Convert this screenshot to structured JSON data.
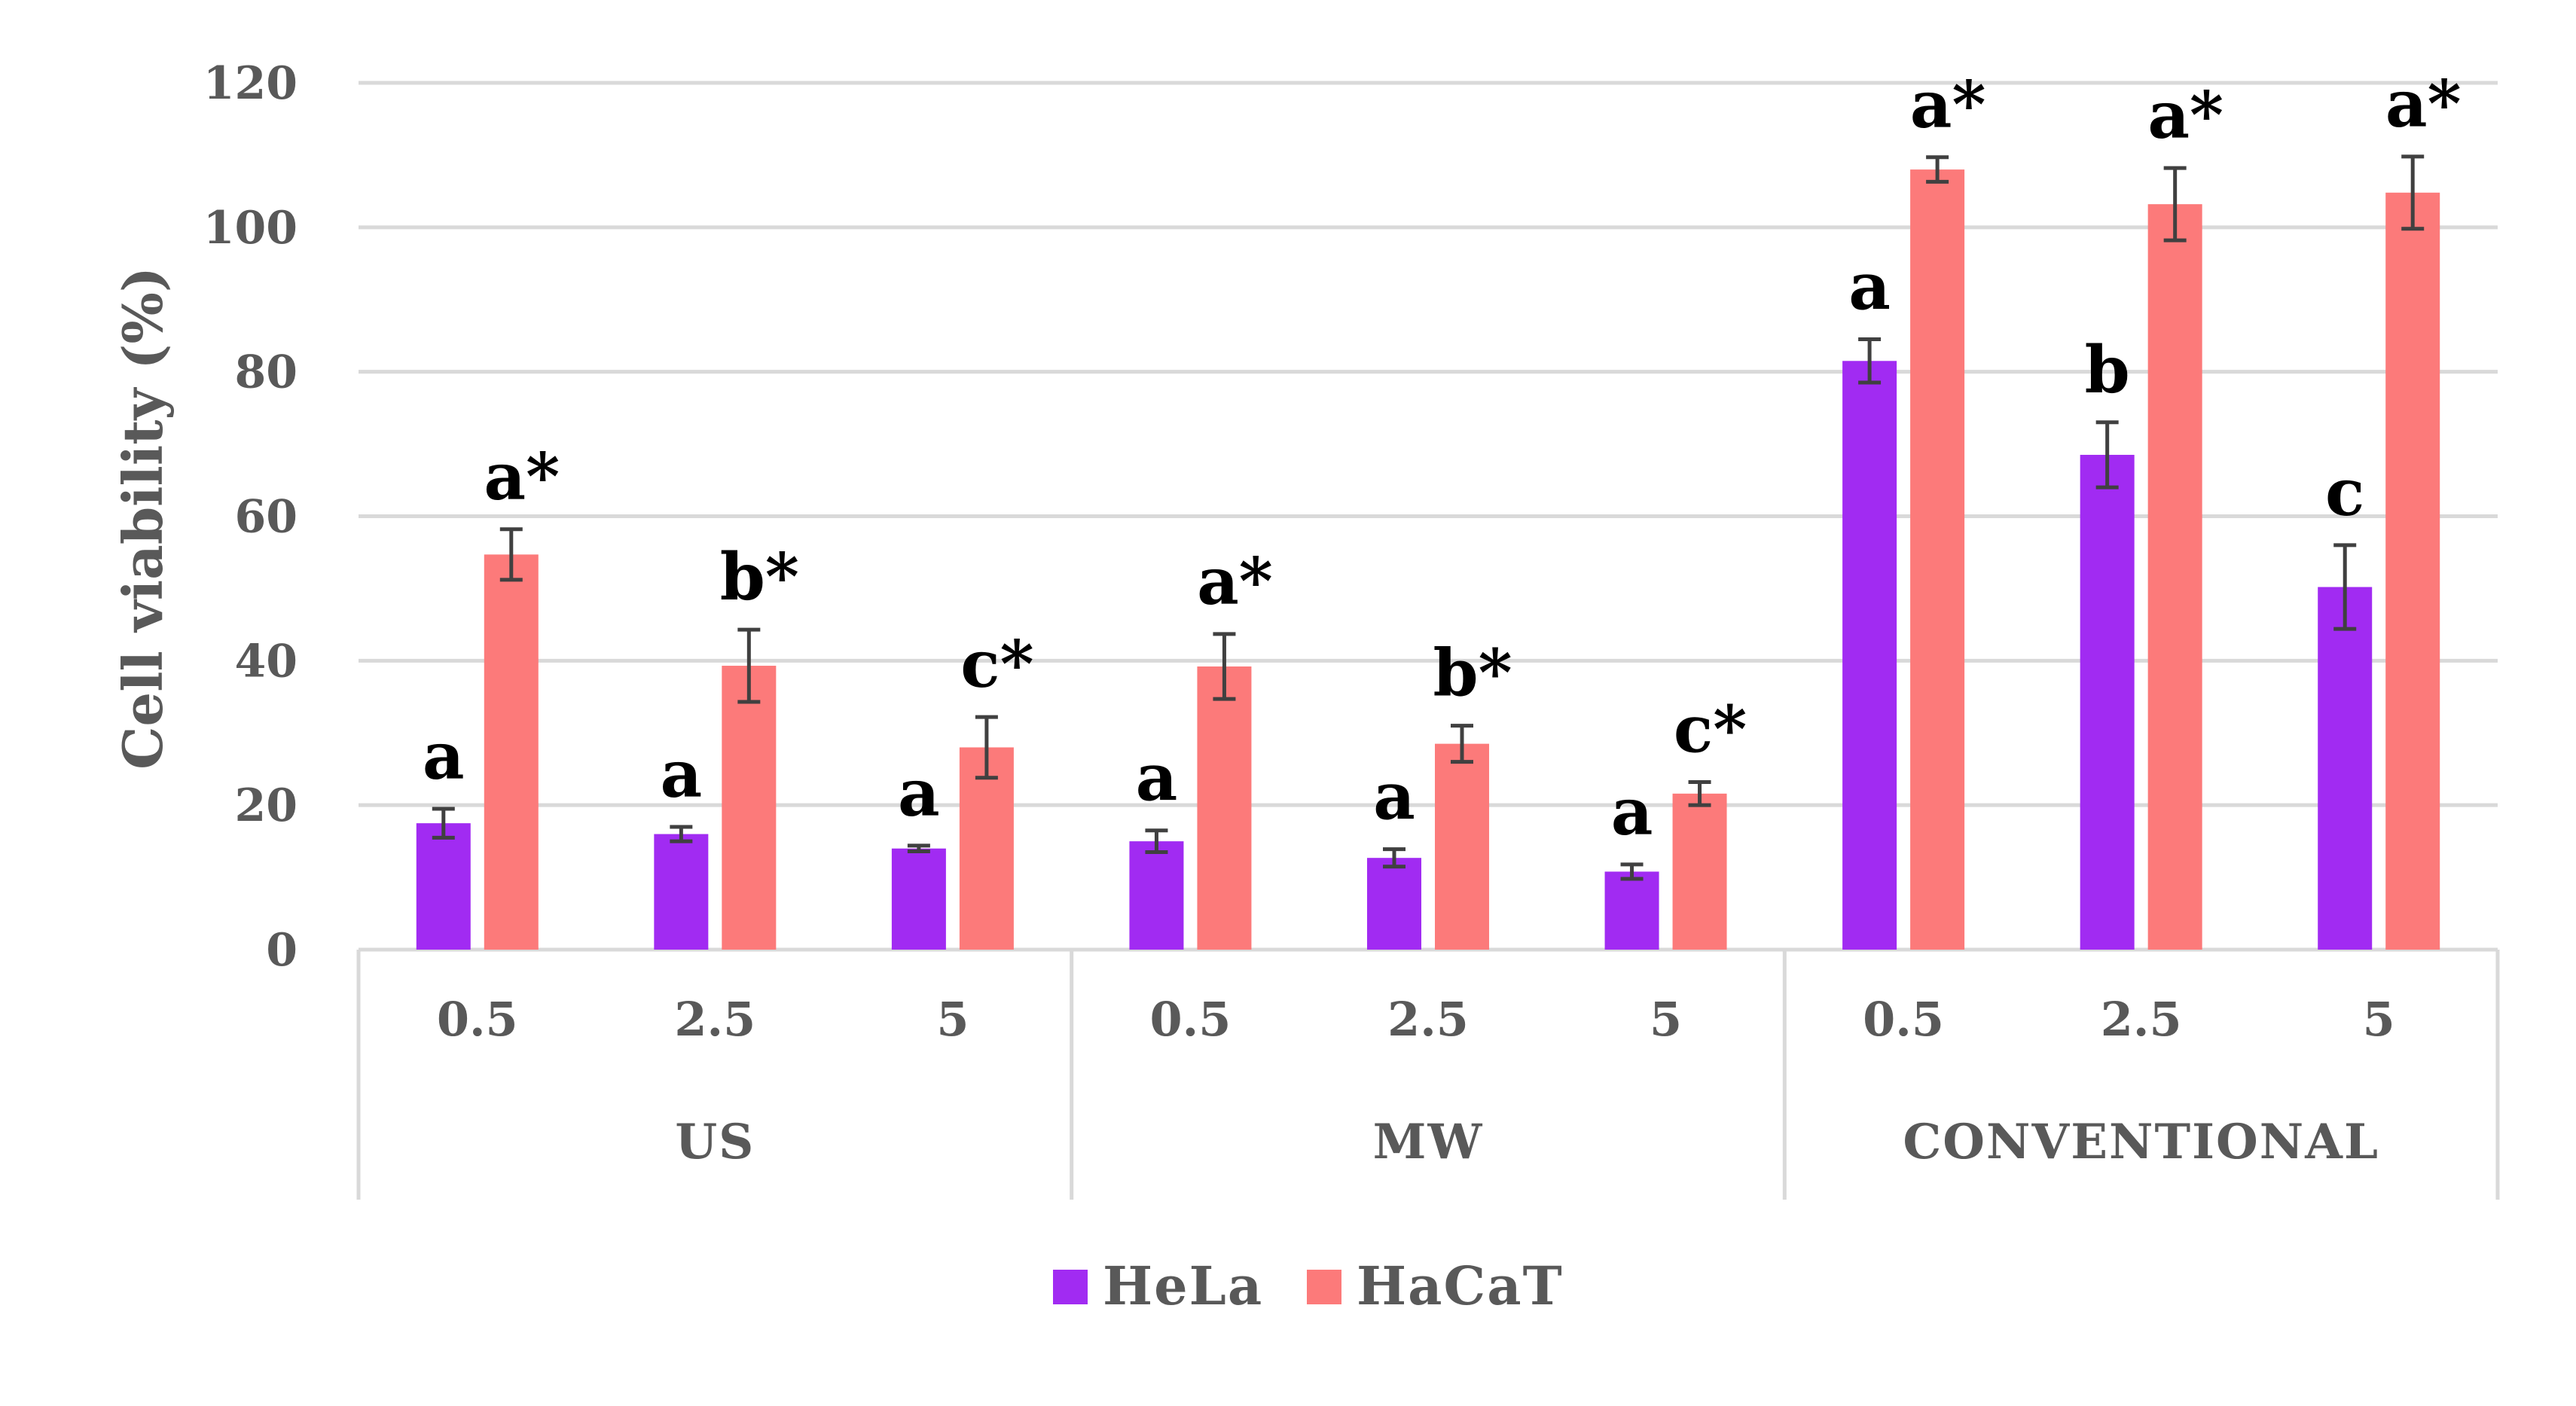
{
  "chart_data": {
    "type": "bar",
    "title": "",
    "xlabel": "",
    "ylabel": "Cell viability (%)",
    "ylim": [
      0,
      120
    ],
    "yticks": [
      0,
      20,
      40,
      60,
      80,
      100,
      120
    ],
    "grid": true,
    "groups": [
      {
        "name": "US",
        "categories": [
          "0.5",
          "2.5",
          "5"
        ]
      },
      {
        "name": "MW",
        "categories": [
          "0.5",
          "2.5",
          "5"
        ]
      },
      {
        "name": "CONVENTIONAL",
        "categories": [
          "0.5",
          "2.5",
          "5"
        ]
      }
    ],
    "series": [
      {
        "name": "HeLa",
        "color": "#a12bf2",
        "values": [
          17.5,
          16,
          14,
          15,
          12.7,
          10.8,
          81.5,
          68.5,
          50.2
        ],
        "errors": [
          2.0,
          1.0,
          0.4,
          1.5,
          1.2,
          1.0,
          3.0,
          4.5,
          5.8
        ],
        "labels": [
          "a",
          "a",
          "a",
          "a",
          "a",
          "a",
          "a",
          "b",
          "c"
        ]
      },
      {
        "name": "HaCaT",
        "color": "#fc7a7a",
        "values": [
          54.7,
          39.3,
          28,
          39.2,
          28.5,
          21.6,
          108,
          103.2,
          104.8
        ],
        "errors": [
          3.5,
          5.0,
          4.2,
          4.5,
          2.5,
          1.6,
          1.7,
          5.0,
          5.0
        ],
        "labels": [
          "a*",
          "b*",
          "c*",
          "a*",
          "b*",
          "c*",
          "a*",
          "a*",
          "a*"
        ]
      }
    ],
    "legend": {
      "position": "bottom"
    }
  }
}
